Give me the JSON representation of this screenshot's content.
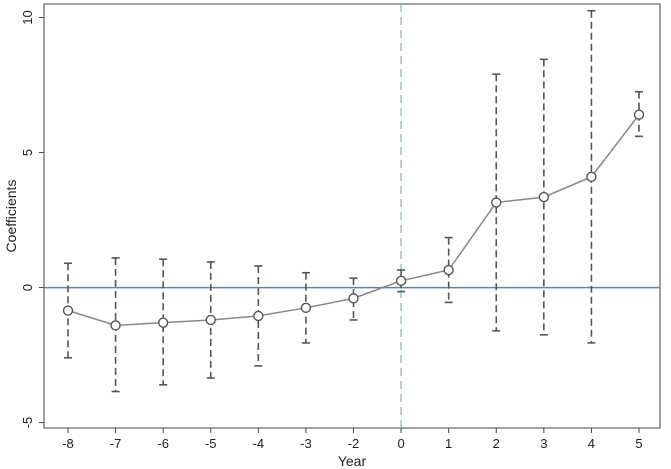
{
  "chart_data": {
    "type": "line",
    "title": "",
    "xlabel": "Year",
    "ylabel": "Coefficients",
    "x": [
      -8,
      -7,
      -6,
      -5,
      -4,
      -3,
      -2,
      0,
      1,
      2,
      3,
      4,
      5
    ],
    "xticks": [
      "-8",
      "-7",
      "-6",
      "-5",
      "-4",
      "-3",
      "-2",
      "0",
      "1",
      "2",
      "3",
      "4",
      "5"
    ],
    "yticks": [
      "-5",
      "0",
      "5",
      "10"
    ],
    "ylim": [
      -5.2,
      10.5
    ],
    "series": [
      {
        "values": [
          -0.85,
          -1.4,
          -1.3,
          -1.2,
          -1.05,
          -0.75,
          -0.4,
          0.25,
          0.65,
          3.15,
          3.35,
          4.1,
          6.4
        ],
        "ci_lower": [
          -2.6,
          -3.85,
          -3.6,
          -3.35,
          -2.9,
          -2.05,
          -1.2,
          -0.15,
          -0.55,
          -1.6,
          -1.75,
          -2.05,
          5.6
        ],
        "ci_upper": [
          0.9,
          1.1,
          1.05,
          0.95,
          0.8,
          0.55,
          0.35,
          0.65,
          1.85,
          7.9,
          8.45,
          10.25,
          7.25
        ]
      }
    ],
    "reference_lines": {
      "horizontal_y": 0,
      "vertical_x": 0
    },
    "colors": {
      "line": "#888888",
      "errorbar": "#555555",
      "marker": "#555555",
      "hline": "#5b86a8",
      "vline": "#7fbfae"
    },
    "grid": false,
    "legend": "none"
  }
}
